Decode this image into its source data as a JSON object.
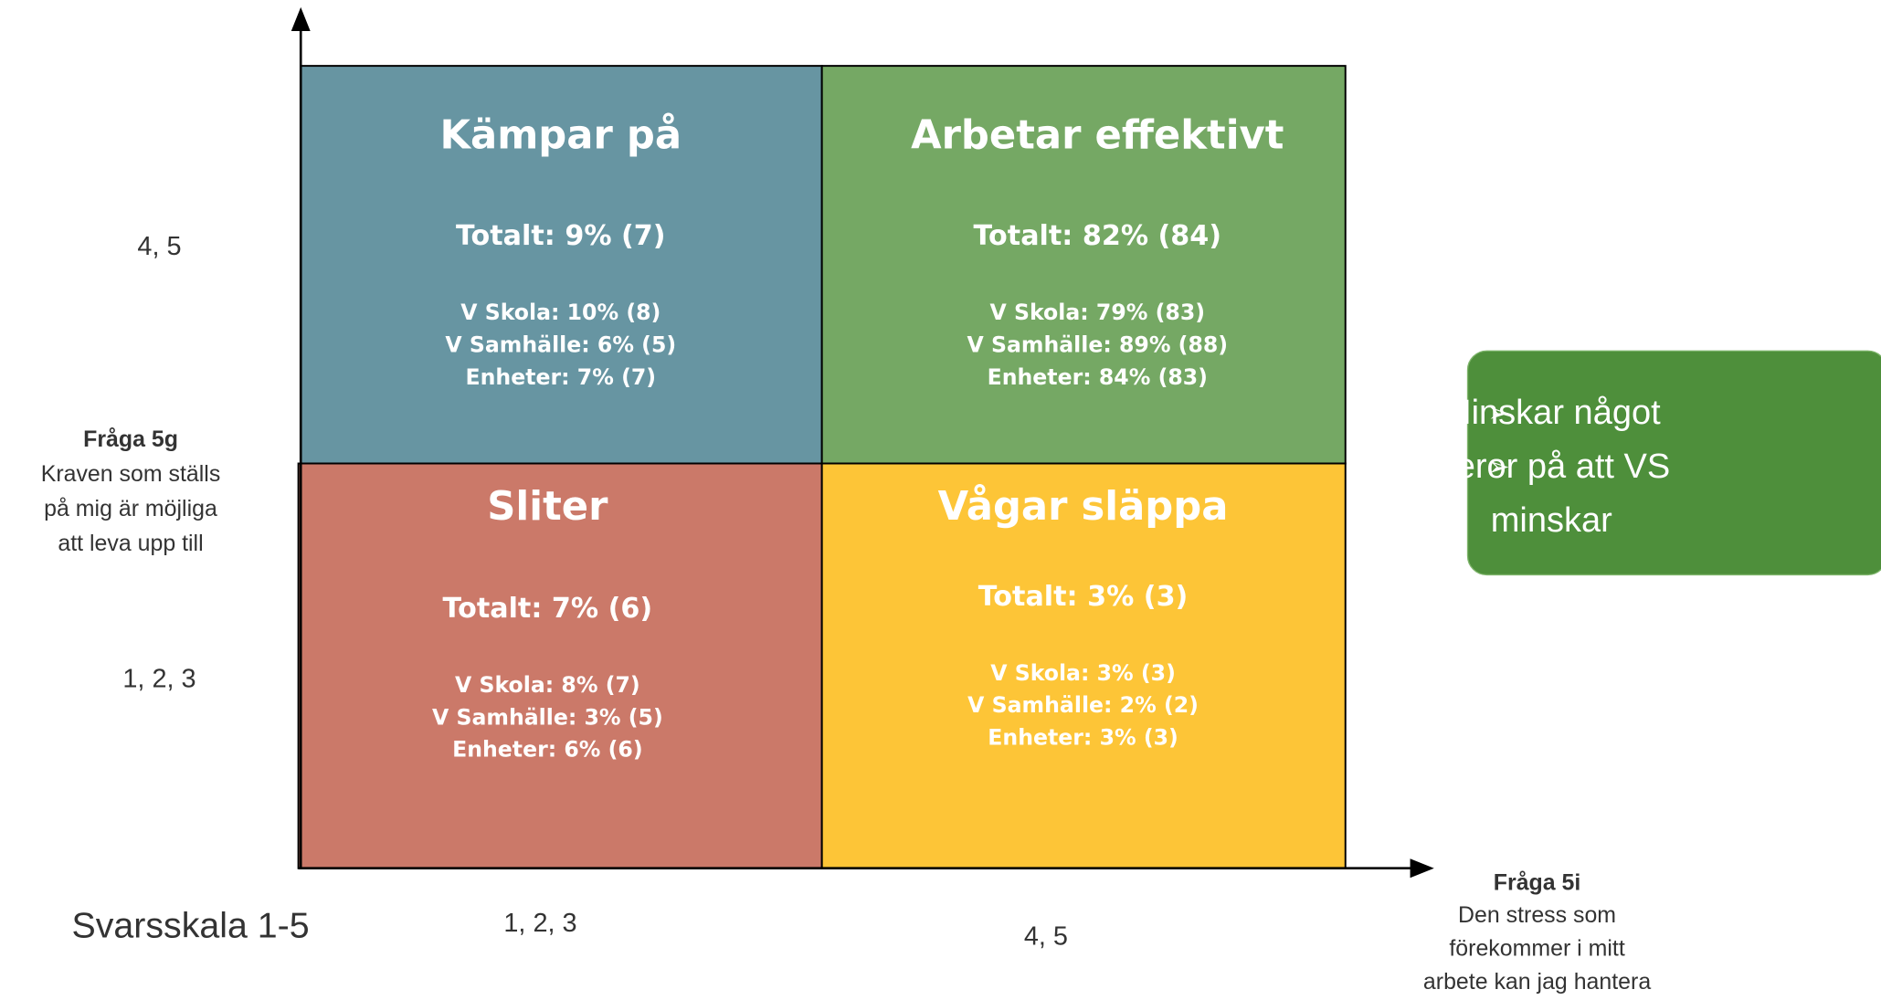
{
  "y_axis": {
    "high_label": "4, 5",
    "low_label": "1, 2, 3",
    "question": "Fråga 5g",
    "description": [
      "Kraven som ställs",
      "på mig är möjliga",
      "att leva upp till"
    ]
  },
  "x_axis": {
    "low_label": "1, 2, 3",
    "high_label": "4, 5",
    "question": "Fråga 5i",
    "description": [
      "Den stress som",
      "förekommer i mitt",
      "arbete kan jag hantera"
    ]
  },
  "scale_note": "Svarsskala 1-5",
  "quadrants": [
    {
      "title": "Kämpar på",
      "total": "Totalt: 9% (7)",
      "details": [
        "V Skola: 10% (8)",
        "V Samhälle: 6% (5)",
        "Enheter: 7% (7)"
      ]
    },
    {
      "title": "Arbetar effektivt",
      "total": "Totalt: 82% (84)",
      "details": [
        "V Skola: 79% (83)",
        "V Samhälle: 89% (88)",
        "Enheter: 84% (83)"
      ]
    },
    {
      "title": "Sliter",
      "total": "Totalt: 7% (6)",
      "details": [
        "V Skola: 8% (7)",
        "V Samhälle: 3% (5)",
        "Enheter: 6% (6)"
      ]
    },
    {
      "title": "Vågar släppa",
      "total": "Totalt: 3% (3)",
      "details": [
        "V Skola: 3% (3)",
        "V Samhälle: 2% (2)",
        "Enheter: 3% (3)"
      ]
    }
  ],
  "callout": {
    "bullets": [
      {
        "lines": [
          "Minskar något"
        ]
      },
      {
        "lines": [
          "Beror på att VS",
          "minskar"
        ]
      }
    ]
  }
}
